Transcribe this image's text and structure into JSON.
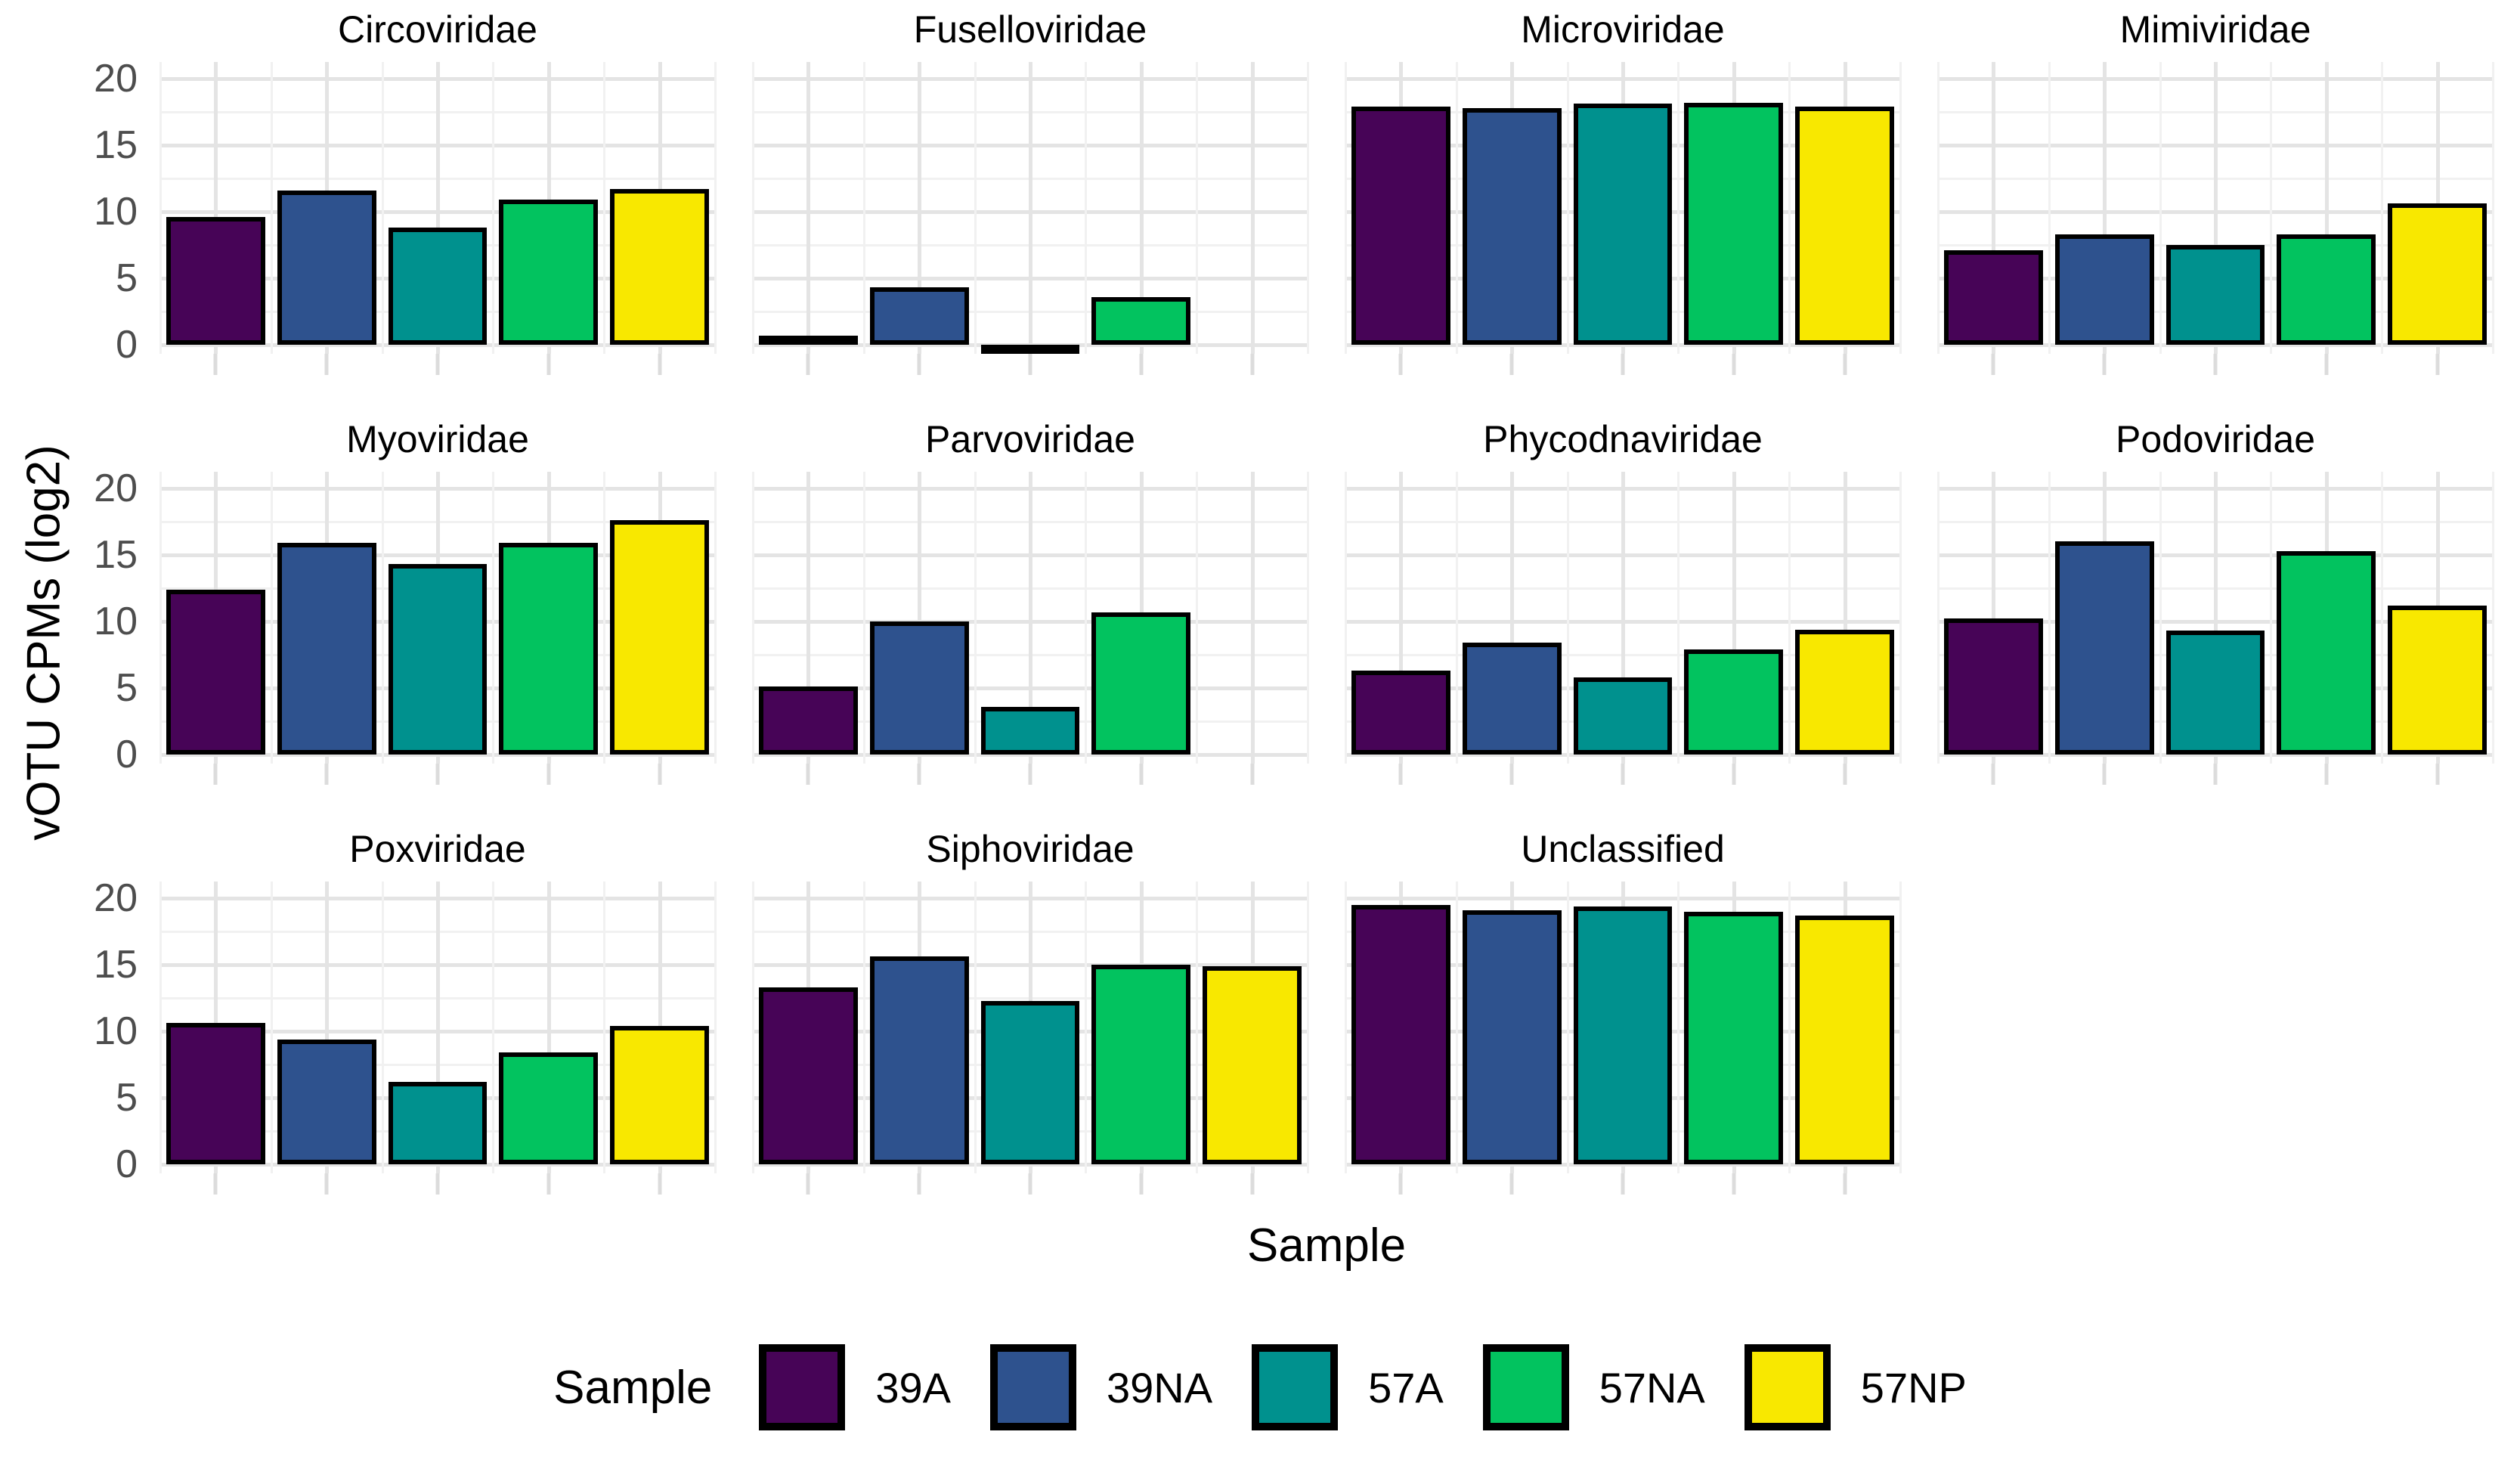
{
  "figure": {
    "y_axis_title": "vOTU CPMs (log2)",
    "x_axis_title": "Sample",
    "legend_title": "Sample"
  },
  "chart_data": {
    "type": "bar",
    "title": "",
    "xlabel": "Sample",
    "ylabel": "vOTU CPMs (log2)",
    "facet_layout": "wrap, 4 columns, 11 panels",
    "categories": [
      "39A",
      "39NA",
      "57A",
      "57NA",
      "57NP"
    ],
    "palette": [
      "#470457",
      "#2E528E",
      "#00918E",
      "#02C35F",
      "#F8E800"
    ],
    "bar_outline_color": "#000000",
    "ylim": [
      -0.8,
      21.2
    ],
    "y_ticks": [
      0,
      5,
      10,
      15,
      20
    ],
    "y_tick_labels": [
      "0",
      "5",
      "10",
      "15",
      "20"
    ],
    "y_minor_ticks": [
      2.5,
      7.5,
      12.5,
      17.5
    ],
    "grid": "major and minor, light gray, horizontal and vertical",
    "legend_position": "bottom",
    "legend": {
      "title": "Sample",
      "entries": [
        "39A",
        "39NA",
        "57A",
        "57NA",
        "57NP"
      ]
    },
    "facets": [
      {
        "title": "Circoviridae",
        "values": [
          9.6,
          11.6,
          8.8,
          10.9,
          11.7
        ]
      },
      {
        "title": "Fuselloviridae",
        "values": [
          0.4,
          4.3,
          -0.5,
          3.6,
          0
        ]
      },
      {
        "title": "Microviridae",
        "values": [
          17.9,
          17.8,
          18.1,
          18.2,
          17.9
        ]
      },
      {
        "title": "Mimiviridae",
        "values": [
          7.1,
          8.3,
          7.5,
          8.3,
          10.6
        ]
      },
      {
        "title": "Myoviridae",
        "values": [
          12.4,
          15.9,
          14.3,
          15.9,
          17.6
        ]
      },
      {
        "title": "Parvoviridae",
        "values": [
          5.1,
          10.0,
          3.6,
          10.7,
          0
        ]
      },
      {
        "title": "Phycodnaviridae",
        "values": [
          6.3,
          8.4,
          5.8,
          7.9,
          9.4
        ]
      },
      {
        "title": "Podoviridae",
        "values": [
          10.2,
          16.0,
          9.3,
          15.3,
          11.2
        ]
      },
      {
        "title": "Poxviridae",
        "values": [
          10.6,
          9.4,
          6.2,
          8.4,
          10.4
        ]
      },
      {
        "title": "Siphoviridae",
        "values": [
          13.3,
          15.6,
          12.3,
          15.0,
          14.9
        ]
      },
      {
        "title": "Unclassified",
        "values": [
          19.5,
          19.1,
          19.4,
          19.0,
          18.7
        ]
      }
    ]
  },
  "style": {
    "grid_major_color": "#e4e4e4",
    "grid_minor_color": "#f1f1f1",
    "tick_color": "#dcdcdc",
    "tick_label_color": "#4d4d4d",
    "background": "#ffffff"
  }
}
